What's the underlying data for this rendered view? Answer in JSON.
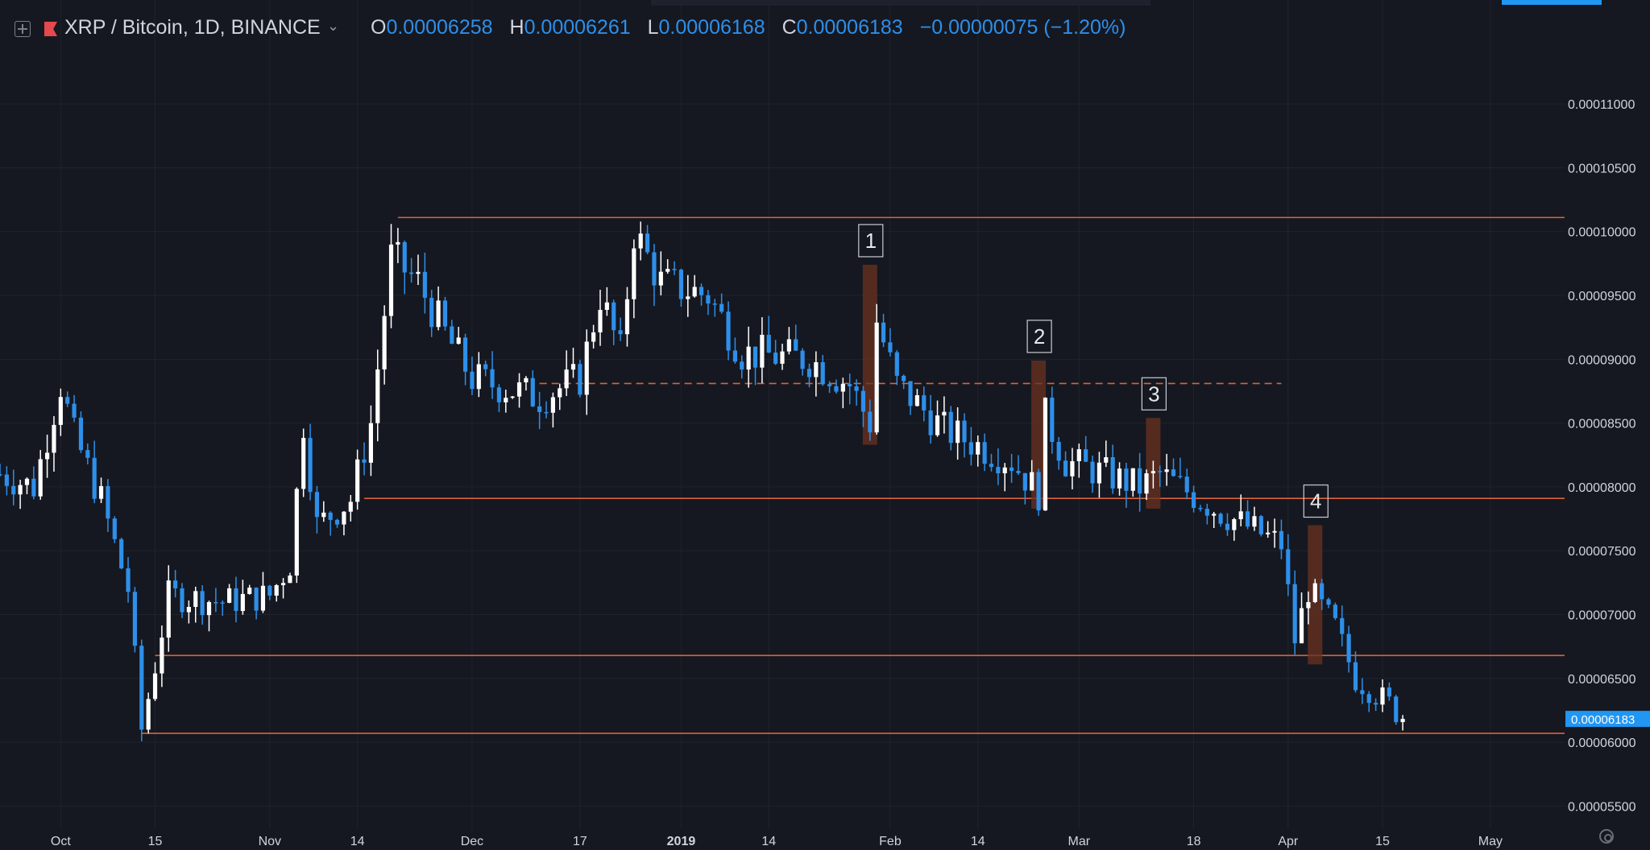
{
  "header": {
    "symbol": "XRP / Bitcoin, 1D, BINANCE",
    "open_label": "O",
    "open_value": "0.00006258",
    "high_label": "H",
    "high_value": "0.00006261",
    "low_label": "L",
    "low_value": "0.00006168",
    "close_label": "C",
    "close_value": "0.00006183",
    "change": "−0.00000075 (−1.20%)"
  },
  "icons": {
    "add": "plus-square-icon",
    "flag": "flag-icon",
    "dropdown": "chevron-down-icon",
    "settings": "gear-icon"
  },
  "colors": {
    "background": "#151820",
    "up_candle": "#ffffff",
    "down_candle": "#2e8fe9",
    "level_line": "#e0603a",
    "highlight_box": "#6b3220",
    "price_tag": "#2196f3",
    "text": "#d1d4dc",
    "header_value": "#2e8fe9"
  },
  "chart_data": {
    "type": "candlestick",
    "title": "XRP / Bitcoin, 1D, BINANCE",
    "xlabel": "",
    "ylabel": "",
    "x_range": [
      "2018-09-22",
      "2019-05-12"
    ],
    "ylim": [
      5.32e-05,
      0.0001136
    ],
    "grid": true,
    "x_ticks": [
      {
        "date": "2018-10-01",
        "label": "Oct"
      },
      {
        "date": "2018-10-15",
        "label": "15"
      },
      {
        "date": "2018-11-01",
        "label": "Nov"
      },
      {
        "date": "2018-11-14",
        "label": "14"
      },
      {
        "date": "2018-12-01",
        "label": "Dec"
      },
      {
        "date": "2018-12-17",
        "label": "17"
      },
      {
        "date": "2019-01-01",
        "label": "2019"
      },
      {
        "date": "2019-01-14",
        "label": "14"
      },
      {
        "date": "2019-02-01",
        "label": "Feb"
      },
      {
        "date": "2019-02-14",
        "label": "14"
      },
      {
        "date": "2019-03-01",
        "label": "Mar"
      },
      {
        "date": "2019-03-18",
        "label": "18"
      },
      {
        "date": "2019-04-01",
        "label": "Apr"
      },
      {
        "date": "2019-04-15",
        "label": "15"
      },
      {
        "date": "2019-05-01",
        "label": "May"
      }
    ],
    "y_ticks": [
      "0.00011000",
      "0.00010500",
      "0.00010000",
      "0.00009500",
      "0.00009000",
      "0.00008500",
      "0.00008000",
      "0.00007500",
      "0.00007000",
      "0.00006500",
      "0.00006000",
      "0.00005500"
    ],
    "last_price": "0.00006183",
    "last_value": 6.183e-05,
    "anchors": [
      {
        "date": "2018-09-22",
        "price": 8.1e-05
      },
      {
        "date": "2018-09-27",
        "price": 8e-05
      },
      {
        "date": "2018-10-01",
        "price": 8.8e-05
      },
      {
        "date": "2018-10-03",
        "price": 8.4e-05
      },
      {
        "date": "2018-10-07",
        "price": 7.9e-05
      },
      {
        "date": "2018-10-11",
        "price": 7.2e-05
      },
      {
        "date": "2018-10-13",
        "price": 6.1e-05
      },
      {
        "date": "2018-10-15",
        "price": 6.6e-05
      },
      {
        "date": "2018-10-17",
        "price": 7.15e-05
      },
      {
        "date": "2018-10-25",
        "price": 7.1e-05
      },
      {
        "date": "2018-11-01",
        "price": 7.15e-05
      },
      {
        "date": "2018-11-04",
        "price": 7.4e-05
      },
      {
        "date": "2018-11-06",
        "price": 8.5e-05
      },
      {
        "date": "2018-11-08",
        "price": 7.7e-05
      },
      {
        "date": "2018-11-13",
        "price": 7.9e-05
      },
      {
        "date": "2018-11-16",
        "price": 8.5e-05
      },
      {
        "date": "2018-11-19",
        "price": 9.8e-05
      },
      {
        "date": "2018-11-23",
        "price": 9.6e-05
      },
      {
        "date": "2018-11-27",
        "price": 9.2e-05
      },
      {
        "date": "2018-12-01",
        "price": 8.85e-05
      },
      {
        "date": "2018-12-11",
        "price": 8.7e-05
      },
      {
        "date": "2018-12-17",
        "price": 8.85e-05
      },
      {
        "date": "2018-12-20",
        "price": 9.5e-05
      },
      {
        "date": "2018-12-23",
        "price": 9.05e-05
      },
      {
        "date": "2018-12-25",
        "price": 0.0001
      },
      {
        "date": "2018-12-29",
        "price": 9.6e-05
      },
      {
        "date": "2019-01-05",
        "price": 9.5e-05
      },
      {
        "date": "2019-01-10",
        "price": 9.05e-05
      },
      {
        "date": "2019-01-20",
        "price": 9e-05
      },
      {
        "date": "2019-01-26",
        "price": 8.8e-05
      },
      {
        "date": "2019-01-29",
        "price": 8.5e-05
      },
      {
        "date": "2019-01-30",
        "price": 9.3e-05
      },
      {
        "date": "2019-02-02",
        "price": 8.8e-05
      },
      {
        "date": "2019-02-09",
        "price": 8.45e-05
      },
      {
        "date": "2019-02-19",
        "price": 8.2e-05
      },
      {
        "date": "2019-02-23",
        "price": 7.95e-05
      },
      {
        "date": "2019-02-24",
        "price": 8.55e-05
      },
      {
        "date": "2019-02-27",
        "price": 8.2e-05
      },
      {
        "date": "2019-03-05",
        "price": 8.1e-05
      },
      {
        "date": "2019-03-10",
        "price": 8e-05
      },
      {
        "date": "2019-03-13",
        "price": 8.1e-05
      },
      {
        "date": "2019-03-22",
        "price": 7.8e-05
      },
      {
        "date": "2019-03-31",
        "price": 7.55e-05
      },
      {
        "date": "2019-04-02",
        "price": 6.8e-05
      },
      {
        "date": "2019-04-04",
        "price": 7.2e-05
      },
      {
        "date": "2019-04-08",
        "price": 6.9e-05
      },
      {
        "date": "2019-04-11",
        "price": 6.5e-05
      },
      {
        "date": "2019-04-16",
        "price": 6.3e-05
      },
      {
        "date": "2019-04-18",
        "price": 6.18e-05
      }
    ],
    "levels": [
      {
        "value": 0.0001011,
        "style": "solid",
        "from": "2018-11-20",
        "to": "2019-05-12"
      },
      {
        "value": 8.81e-05,
        "style": "dashed",
        "from": "2018-12-11",
        "to": "2019-03-31"
      },
      {
        "value": 7.91e-05,
        "style": "solid",
        "from": "2018-11-15",
        "to": "2019-05-12"
      },
      {
        "value": 6.68e-05,
        "style": "solid",
        "from": "2018-10-15",
        "to": "2019-05-12"
      },
      {
        "value": 6.07e-05,
        "style": "solid",
        "from": "2018-10-13",
        "to": "2019-05-12"
      }
    ],
    "annotations": [
      {
        "label": "1",
        "date": "2019-01-29",
        "high": 9.74e-05,
        "low": 8.33e-05
      },
      {
        "label": "2",
        "date": "2019-02-23",
        "high": 8.99e-05,
        "low": 7.83e-05
      },
      {
        "label": "3",
        "date": "2019-03-12",
        "high": 8.54e-05,
        "low": 7.83e-05
      },
      {
        "label": "4",
        "date": "2019-04-05",
        "high": 7.7e-05,
        "low": 6.61e-05
      }
    ]
  }
}
